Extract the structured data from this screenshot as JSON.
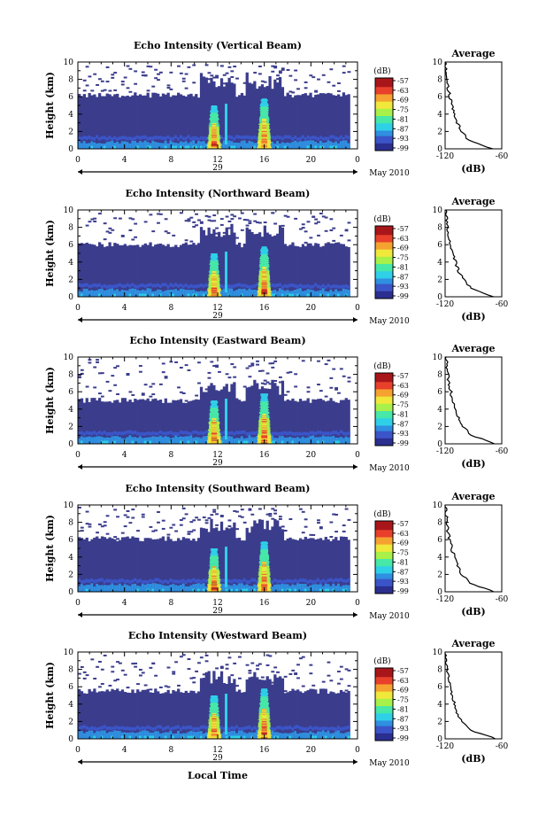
{
  "colors": {
    "background_bin": "#3b3d8c",
    "colormap": [
      "#2b2f8f",
      "#3b55c9",
      "#2f8fe0",
      "#2fd0e8",
      "#47e8a8",
      "#a8f04a",
      "#f0e83a",
      "#f5a230",
      "#e8402a",
      "#a8161a"
    ]
  },
  "shared": {
    "x_ticks": [
      "0",
      "4",
      "8",
      "12",
      "16",
      "20",
      "0"
    ],
    "y_ticks": [
      "0",
      "2",
      "4",
      "6",
      "8",
      "10"
    ],
    "ylabel": "Height (km)",
    "date_day": "29",
    "date_month_year": "May 2010",
    "xlabel": "Local Time",
    "colorbar_unit": "(dB)",
    "colorbar_ticks": [
      "-57",
      "-63",
      "-69",
      "-75",
      "-81",
      "-87",
      "-93",
      "-99"
    ],
    "avg_title": "Average",
    "avg_x_ticks": [
      "-120",
      "-60"
    ],
    "avg_xlabel": "(dB)",
    "avg_y_ticks": [
      "0",
      "2",
      "4",
      "6",
      "8",
      "10"
    ]
  },
  "chart_data": [
    {
      "type": "heatmap",
      "title": "Echo Intensity (Vertical Beam)",
      "x": "local time (h), 0-24, 29 May 2010",
      "xlim": [
        0,
        24
      ],
      "ylim": [
        0,
        10
      ],
      "zlim": [
        -99,
        -57
      ],
      "echo_top_km": 6.2,
      "enhanced_columns_hours": [
        12,
        16
      ],
      "average_profile": {
        "height_km": [
          0,
          1,
          2,
          3,
          4,
          5,
          6,
          7,
          8,
          9,
          10
        ],
        "db": [
          -70,
          -95,
          -103,
          -107,
          -110,
          -113,
          -115,
          -117,
          -118,
          -119,
          -120
        ]
      }
    },
    {
      "type": "heatmap",
      "title": "Echo Intensity (Northward Beam)",
      "xlim": [
        0,
        24
      ],
      "ylim": [
        0,
        10
      ],
      "zlim": [
        -99,
        -57
      ],
      "echo_top_km": 6.0,
      "enhanced_columns_hours": [
        12,
        16
      ],
      "average_profile": {
        "height_km": [
          0,
          1,
          2,
          3,
          4,
          5,
          6,
          7,
          8,
          9,
          10
        ],
        "db": [
          -68,
          -93,
          -101,
          -106,
          -109,
          -112,
          -114,
          -116,
          -117,
          -118,
          -119
        ]
      }
    },
    {
      "type": "heatmap",
      "title": "Echo Intensity (Eastward Beam)",
      "xlim": [
        0,
        24
      ],
      "ylim": [
        0,
        10
      ],
      "zlim": [
        -99,
        -57
      ],
      "echo_top_km": 5.0,
      "enhanced_columns_hours": [
        12,
        16
      ],
      "average_profile": {
        "height_km": [
          0,
          1,
          2,
          3,
          4,
          5,
          6,
          7,
          8,
          9,
          10
        ],
        "db": [
          -67,
          -92,
          -101,
          -106,
          -109,
          -112,
          -114,
          -116,
          -117,
          -118,
          -119
        ]
      }
    },
    {
      "type": "heatmap",
      "title": "Echo Intensity (Southward Beam)",
      "xlim": [
        0,
        24
      ],
      "ylim": [
        0,
        10
      ],
      "zlim": [
        -99,
        -57
      ],
      "echo_top_km": 6.1,
      "enhanced_columns_hours": [
        12,
        16
      ],
      "average_profile": {
        "height_km": [
          0,
          1,
          2,
          3,
          4,
          5,
          6,
          7,
          8,
          9,
          10
        ],
        "db": [
          -68,
          -94,
          -102,
          -107,
          -110,
          -113,
          -115,
          -117,
          -118,
          -119,
          -120
        ]
      }
    },
    {
      "type": "heatmap",
      "title": "Echo Intensity (Westward Beam)",
      "xlim": [
        0,
        24
      ],
      "ylim": [
        0,
        10
      ],
      "zlim": [
        -99,
        -57
      ],
      "echo_top_km": 5.5,
      "enhanced_columns_hours": [
        12,
        16
      ],
      "average_profile": {
        "height_km": [
          0,
          1,
          2,
          3,
          4,
          5,
          6,
          7,
          8,
          9,
          10
        ],
        "db": [
          -66,
          -93,
          -102,
          -107,
          -110,
          -113,
          -115,
          -117,
          -118,
          -119,
          -120
        ]
      }
    }
  ]
}
